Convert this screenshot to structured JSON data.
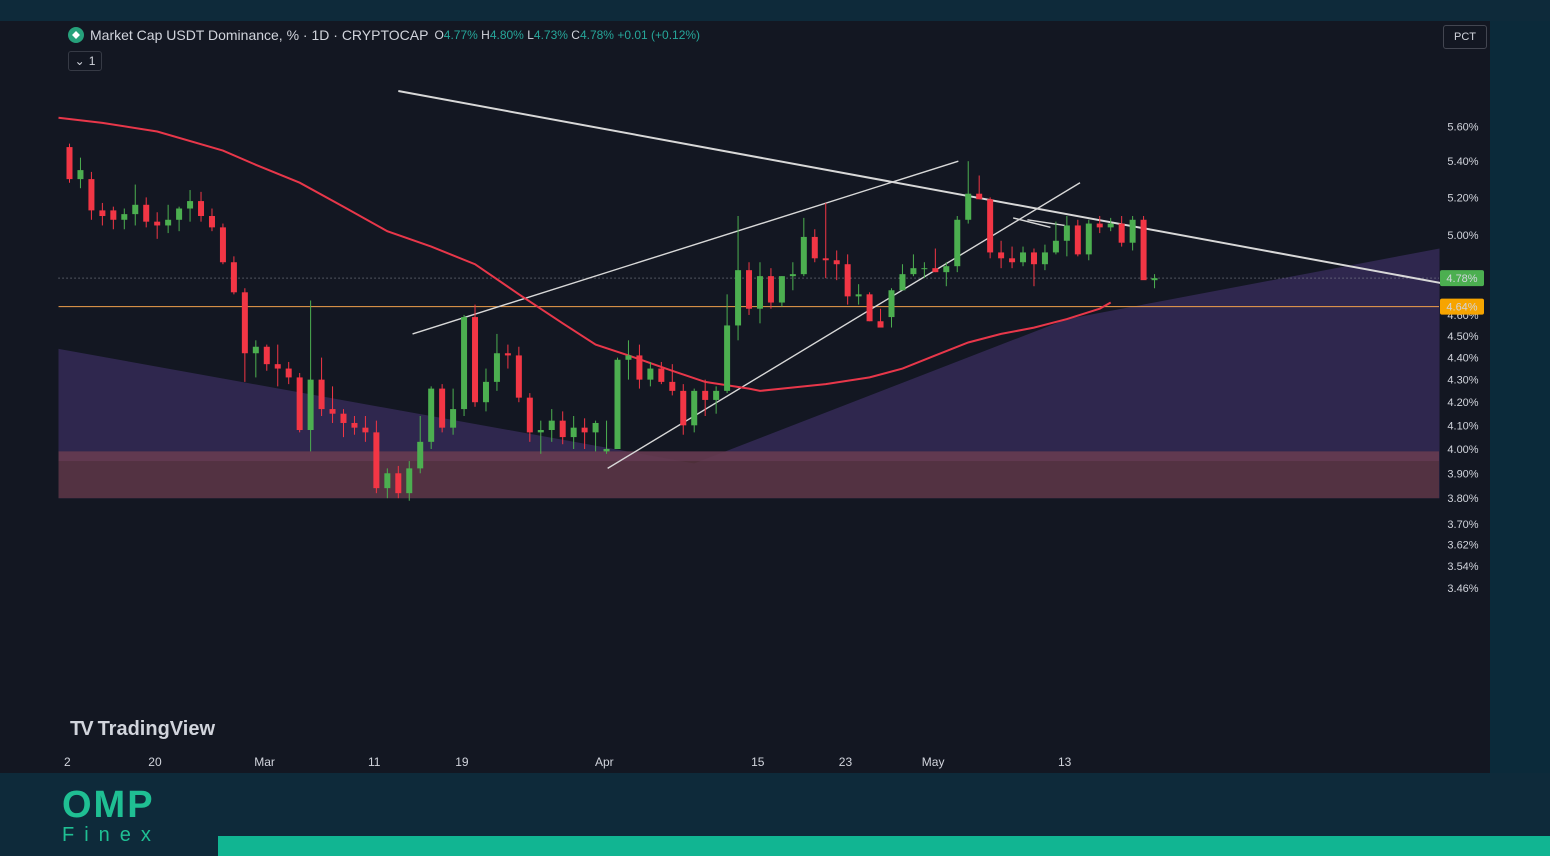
{
  "header": {
    "symbol_title": "Market Cap USDT Dominance, % · 1D · CRYPTOCAP",
    "ohlc": {
      "o_label": "O",
      "o_value": "4.77%",
      "h_label": "H",
      "h_value": "4.80%",
      "l_label": "L",
      "l_value": "4.73%",
      "c_label": "C",
      "c_value": "4.78%",
      "change": "+0.01 (+0.12%)"
    },
    "indicator_count": "1",
    "scale_mode": "PCT"
  },
  "branding": {
    "tradingview": "TradingView",
    "omp_title": "OMP",
    "omp_subtitle": "Finex"
  },
  "colors": {
    "background": "#131722",
    "up": "#4caf50",
    "down": "#f23645",
    "moving_average": "#e8374a",
    "support_line": "#f0a04b",
    "trendlines": "#d8d8d8",
    "purple_zone": "#3a2e5e",
    "red_zone": "#5c3640",
    "accent": "#11b592"
  },
  "chart_data": {
    "type": "candlestick",
    "y_axis": {
      "scale": "log",
      "ticks": [
        "5.60%",
        "5.40%",
        "5.20%",
        "5.00%",
        "4.80%",
        "4.60%",
        "4.50%",
        "4.40%",
        "4.30%",
        "4.20%",
        "4.10%",
        "4.00%",
        "3.90%",
        "3.80%",
        "3.70%",
        "3.62%",
        "3.54%",
        "3.46%"
      ],
      "last_price_label": "4.78%",
      "level_label": "4.64%",
      "level": 4.64
    },
    "x_axis": {
      "ticks": [
        {
          "label": "2",
          "index": -0.2
        },
        {
          "label": "20",
          "index": 7.8
        },
        {
          "label": "Mar",
          "index": 17.8
        },
        {
          "label": "11",
          "index": 27.8
        },
        {
          "label": "19",
          "index": 35.8
        },
        {
          "label": "Apr",
          "index": 48.8
        },
        {
          "label": "15",
          "index": 62.8
        },
        {
          "label": "23",
          "index": 70.8
        },
        {
          "label": "May",
          "index": 78.8
        },
        {
          "label": "13",
          "index": 90.8
        }
      ]
    },
    "candles": [
      [
        5.48,
        5.5,
        5.28,
        5.3
      ],
      [
        5.3,
        5.42,
        5.25,
        5.35
      ],
      [
        5.3,
        5.34,
        5.08,
        5.13
      ],
      [
        5.13,
        5.17,
        5.05,
        5.1
      ],
      [
        5.13,
        5.15,
        5.03,
        5.08
      ],
      [
        5.08,
        5.14,
        5.03,
        5.11
      ],
      [
        5.11,
        5.27,
        5.05,
        5.16
      ],
      [
        5.16,
        5.2,
        5.04,
        5.07
      ],
      [
        5.07,
        5.12,
        4.98,
        5.05
      ],
      [
        5.05,
        5.16,
        5.01,
        5.08
      ],
      [
        5.08,
        5.15,
        5.02,
        5.14
      ],
      [
        5.14,
        5.24,
        5.07,
        5.18
      ],
      [
        5.18,
        5.23,
        5.07,
        5.1
      ],
      [
        5.1,
        5.14,
        5.02,
        5.04
      ],
      [
        5.04,
        5.06,
        4.85,
        4.86
      ],
      [
        4.86,
        4.89,
        4.7,
        4.71
      ],
      [
        4.71,
        4.73,
        4.29,
        4.42
      ],
      [
        4.42,
        4.48,
        4.31,
        4.45
      ],
      [
        4.45,
        4.46,
        4.34,
        4.37
      ],
      [
        4.37,
        4.46,
        4.27,
        4.35
      ],
      [
        4.35,
        4.38,
        4.28,
        4.31
      ],
      [
        4.31,
        4.33,
        4.07,
        4.08
      ],
      [
        4.08,
        4.67,
        3.99,
        4.3
      ],
      [
        4.3,
        4.4,
        4.14,
        4.17
      ],
      [
        4.17,
        4.27,
        4.11,
        4.15
      ],
      [
        4.15,
        4.17,
        4.05,
        4.11
      ],
      [
        4.11,
        4.14,
        4.06,
        4.09
      ],
      [
        4.09,
        4.14,
        4.03,
        4.07
      ],
      [
        4.07,
        4.12,
        3.82,
        3.84
      ],
      [
        3.84,
        3.92,
        3.8,
        3.9
      ],
      [
        3.9,
        3.93,
        3.8,
        3.82
      ],
      [
        3.82,
        3.95,
        3.79,
        3.92
      ],
      [
        3.92,
        4.14,
        3.9,
        4.03
      ],
      [
        4.03,
        4.27,
        4.0,
        4.26
      ],
      [
        4.26,
        4.28,
        4.07,
        4.09
      ],
      [
        4.09,
        4.26,
        4.06,
        4.17
      ],
      [
        4.17,
        4.6,
        4.14,
        4.59
      ],
      [
        4.59,
        4.65,
        4.18,
        4.2
      ],
      [
        4.2,
        4.35,
        4.16,
        4.29
      ],
      [
        4.29,
        4.51,
        4.25,
        4.42
      ],
      [
        4.42,
        4.46,
        4.35,
        4.41
      ],
      [
        4.41,
        4.45,
        4.2,
        4.22
      ],
      [
        4.22,
        4.24,
        4.03,
        4.07
      ],
      [
        4.07,
        4.12,
        3.98,
        4.08
      ],
      [
        4.08,
        4.17,
        4.03,
        4.12
      ],
      [
        4.12,
        4.16,
        4.02,
        4.05
      ],
      [
        4.05,
        4.14,
        4.0,
        4.09
      ],
      [
        4.09,
        4.13,
        4.0,
        4.07
      ],
      [
        4.07,
        4.12,
        3.99,
        4.11
      ],
      [
        3.99,
        4.12,
        3.98,
        4.0
      ],
      [
        4.0,
        4.4,
        4.0,
        4.39
      ],
      [
        4.39,
        4.48,
        4.3,
        4.41
      ],
      [
        4.41,
        4.46,
        4.26,
        4.3
      ],
      [
        4.3,
        4.38,
        4.27,
        4.35
      ],
      [
        4.35,
        4.38,
        4.28,
        4.29
      ],
      [
        4.29,
        4.37,
        4.23,
        4.25
      ],
      [
        4.25,
        4.28,
        4.06,
        4.1
      ],
      [
        4.1,
        4.26,
        4.07,
        4.25
      ],
      [
        4.25,
        4.3,
        4.14,
        4.21
      ],
      [
        4.21,
        4.27,
        4.15,
        4.25
      ],
      [
        4.25,
        4.7,
        4.24,
        4.55
      ],
      [
        4.55,
        5.1,
        4.48,
        4.82
      ],
      [
        4.82,
        4.86,
        4.6,
        4.63
      ],
      [
        4.63,
        4.86,
        4.56,
        4.79
      ],
      [
        4.79,
        4.83,
        4.63,
        4.66
      ],
      [
        4.66,
        4.79,
        4.64,
        4.79
      ],
      [
        4.79,
        4.86,
        4.72,
        4.8
      ],
      [
        4.8,
        5.09,
        4.79,
        4.99
      ],
      [
        4.99,
        5.03,
        4.86,
        4.88
      ],
      [
        4.88,
        5.17,
        4.78,
        4.87
      ],
      [
        4.87,
        4.92,
        4.77,
        4.85
      ],
      [
        4.85,
        4.9,
        4.65,
        4.69
      ],
      [
        4.69,
        4.75,
        4.65,
        4.7
      ],
      [
        4.7,
        4.71,
        4.57,
        4.57
      ],
      [
        4.57,
        4.63,
        4.55,
        4.54
      ],
      [
        4.59,
        4.73,
        4.54,
        4.72
      ],
      [
        4.72,
        4.85,
        4.72,
        4.8
      ],
      [
        4.8,
        4.9,
        4.79,
        4.83
      ],
      [
        4.83,
        4.86,
        4.78,
        4.83
      ],
      [
        4.83,
        4.93,
        4.81,
        4.81
      ],
      [
        4.81,
        4.86,
        4.74,
        4.84
      ],
      [
        4.84,
        5.1,
        4.81,
        5.08
      ],
      [
        5.08,
        5.4,
        5.06,
        5.22
      ],
      [
        5.22,
        5.32,
        5.19,
        5.19
      ],
      [
        5.19,
        5.2,
        4.88,
        4.91
      ],
      [
        4.91,
        4.97,
        4.83,
        4.88
      ],
      [
        4.88,
        4.94,
        4.83,
        4.86
      ],
      [
        4.86,
        4.94,
        4.84,
        4.91
      ],
      [
        4.91,
        4.93,
        4.74,
        4.85
      ],
      [
        4.85,
        4.95,
        4.82,
        4.91
      ],
      [
        4.91,
        5.07,
        4.9,
        4.97
      ],
      [
        4.97,
        5.1,
        4.89,
        5.05
      ],
      [
        5.05,
        5.08,
        4.89,
        4.9
      ],
      [
        4.9,
        5.08,
        4.87,
        5.06
      ],
      [
        5.06,
        5.1,
        5.01,
        5.04
      ],
      [
        5.04,
        5.09,
        5.02,
        5.06
      ],
      [
        5.06,
        5.1,
        4.94,
        4.96
      ],
      [
        4.96,
        5.1,
        4.92,
        5.08
      ],
      [
        5.08,
        5.1,
        4.78,
        4.77
      ],
      [
        4.77,
        4.8,
        4.73,
        4.78
      ]
    ],
    "moving_average": [
      [
        -1,
        5.65
      ],
      [
        3,
        5.62
      ],
      [
        8,
        5.57
      ],
      [
        14,
        5.46
      ],
      [
        17,
        5.38
      ],
      [
        21,
        5.28
      ],
      [
        25,
        5.15
      ],
      [
        29,
        5.02
      ],
      [
        33,
        4.94
      ],
      [
        37,
        4.85
      ],
      [
        41,
        4.7
      ],
      [
        45,
        4.56
      ],
      [
        48,
        4.46
      ],
      [
        51,
        4.41
      ],
      [
        55,
        4.34
      ],
      [
        58,
        4.29
      ],
      [
        62,
        4.26
      ],
      [
        63,
        4.25
      ],
      [
        65,
        4.26
      ],
      [
        69,
        4.28
      ],
      [
        73,
        4.31
      ],
      [
        76,
        4.35
      ],
      [
        79,
        4.41
      ],
      [
        82,
        4.47
      ],
      [
        85,
        4.51
      ],
      [
        88,
        4.54
      ],
      [
        91,
        4.58
      ],
      [
        94,
        4.63
      ],
      [
        95,
        4.66
      ]
    ]
  }
}
